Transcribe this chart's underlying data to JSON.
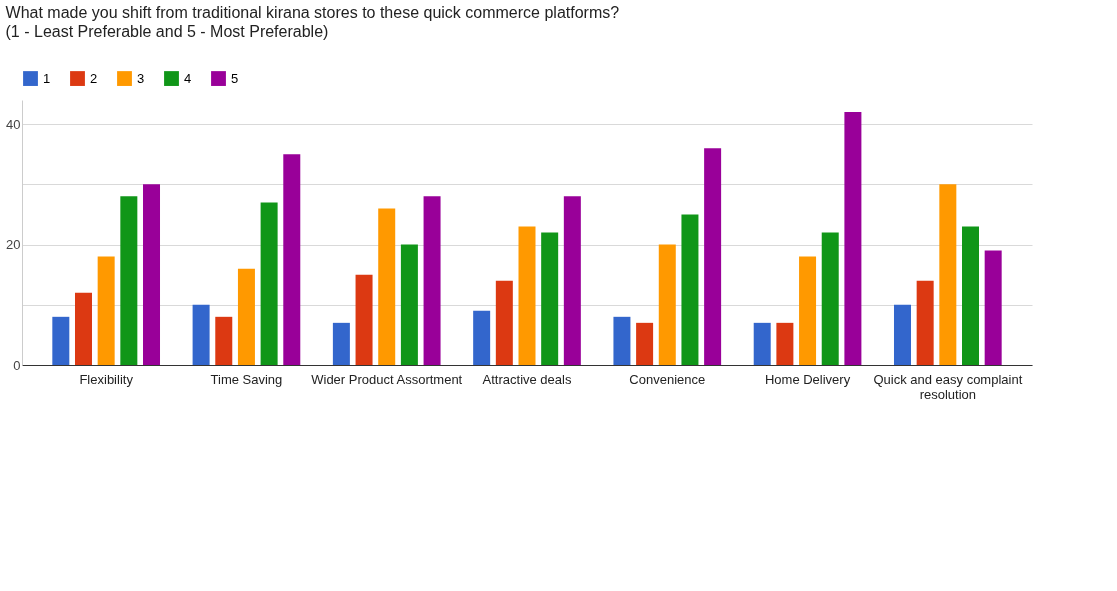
{
  "chart_data": {
    "type": "bar",
    "title": "What made you shift from traditional kirana stores to these quick commerce platforms?",
    "subtitle": "(1 - Least Preferable and 5 - Most Preferable)",
    "categories": [
      "Flexibility",
      "Time Saving",
      "Wider Product Assortment",
      "Attractive deals",
      "Convenience",
      "Home Delivery",
      "Quick and easy complaint resolution"
    ],
    "series": [
      {
        "name": "1",
        "color": "#3366cc",
        "values": [
          8,
          10,
          7,
          9,
          8,
          7,
          10
        ]
      },
      {
        "name": "2",
        "color": "#dc3912",
        "values": [
          12,
          8,
          15,
          14,
          7,
          7,
          14
        ]
      },
      {
        "name": "3",
        "color": "#ff9900",
        "values": [
          18,
          16,
          26,
          23,
          20,
          18,
          30
        ]
      },
      {
        "name": "4",
        "color": "#109618",
        "values": [
          28,
          27,
          20,
          22,
          25,
          22,
          23
        ]
      },
      {
        "name": "5",
        "color": "#990099",
        "values": [
          30,
          35,
          28,
          28,
          36,
          42,
          19
        ]
      }
    ],
    "ylim": [
      0,
      44
    ],
    "yticks": [
      0,
      {
        "value": 10,
        "label": null
      },
      20,
      {
        "value": 30,
        "label": null
      },
      40
    ],
    "grid": "y",
    "legend": "top left"
  }
}
